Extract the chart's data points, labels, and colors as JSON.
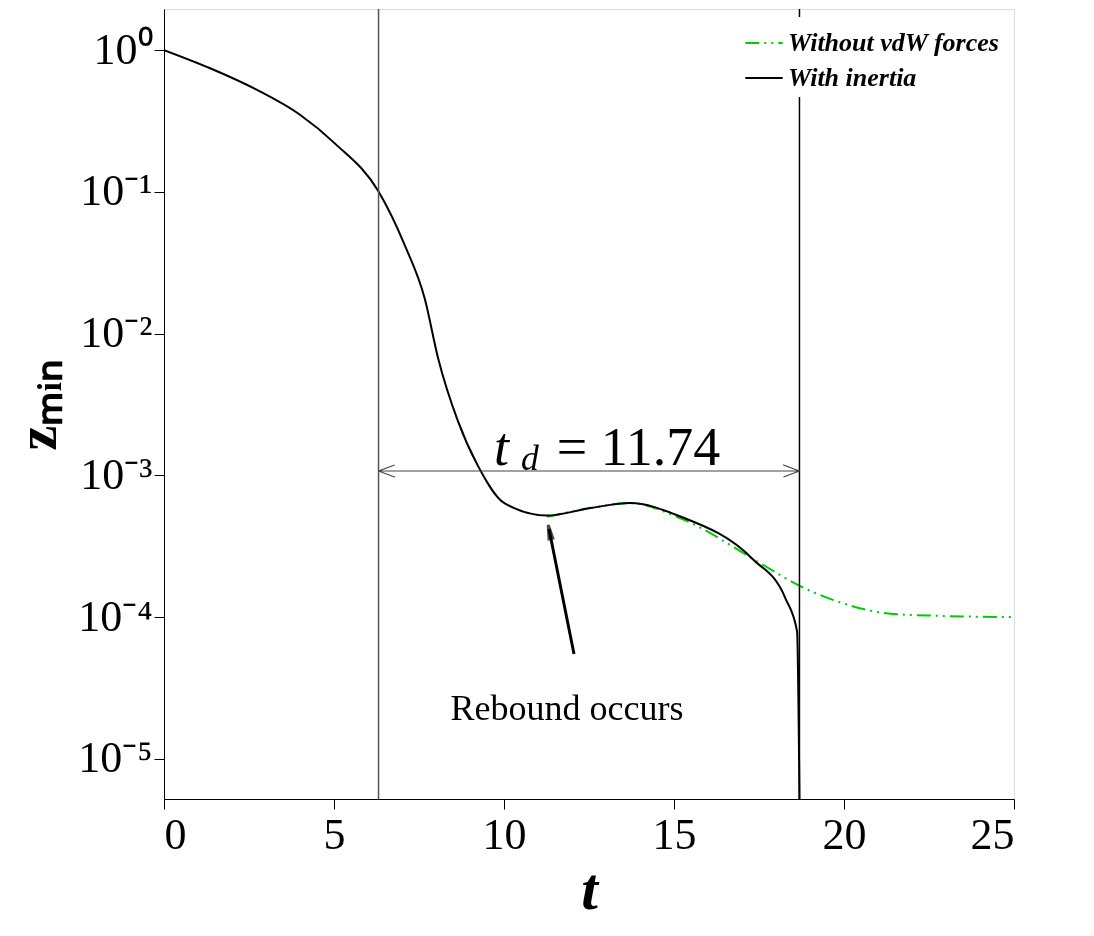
{
  "chart_data": {
    "type": "line",
    "xlabel": "t",
    "ylabel": "zₘᵢₙ",
    "xlim": [
      0,
      25
    ],
    "xticks": [
      0,
      5,
      10,
      15,
      20,
      25
    ],
    "ylim": [
      5.2e-06,
      1.95
    ],
    "log": "y",
    "yticks": [
      {
        "value": 1,
        "label": "10⁰"
      },
      {
        "value": 0.1,
        "label": "10⁻¹"
      },
      {
        "value": 0.01,
        "label": "10⁻²"
      },
      {
        "value": 0.001,
        "label": "10⁻³"
      },
      {
        "value": 0.0001,
        "label": "10⁻⁴"
      },
      {
        "value": 1e-05,
        "label": "10⁻⁵"
      }
    ],
    "grid": false,
    "legend": "top right",
    "series": [
      {
        "name": "Without vdW forces",
        "color": "#00cc00",
        "line_style": "dashdot",
        "x": [
          11.27,
          12.54,
          13.71,
          15.17,
          17.5,
          18.67,
          19.84,
          21.3,
          22.76,
          25
        ],
        "values": [
          0.00051,
          0.000587,
          0.000637,
          0.0005,
          0.000243,
          0.000167,
          0.000128,
          0.000106,
          0.000102,
          0.0001
        ]
      },
      {
        "name": "With inertia",
        "color": "#000000",
        "line_style": "solid",
        "x": [
          0,
          1.34,
          2.71,
          3.97,
          5.04,
          6.31,
          7.09,
          7.67,
          8.06,
          8.64,
          9.23,
          10.01,
          11.27,
          12.54,
          13.71,
          15.17,
          17.31,
          18.28,
          18.62,
          18.69
        ],
        "values": [
          1.0,
          0.748,
          0.528,
          0.354,
          0.218,
          0.1005,
          0.0415,
          0.0176,
          0.00673,
          0.00243,
          0.00117,
          0.000637,
          0.00052,
          0.000587,
          0.000637,
          0.000514,
          0.000257,
          0.000135,
          7.9e-05,
          5.2e-06
        ]
      }
    ],
    "ref_lines": [
      {
        "axis": "x",
        "value": 6.31,
        "color": "#555555"
      },
      {
        "axis": "x",
        "value": 18.69,
        "color": "#000000"
      }
    ],
    "annotations": [
      "t$_{d}$ = 11.74",
      "Rebound occurs"
    ]
  }
}
